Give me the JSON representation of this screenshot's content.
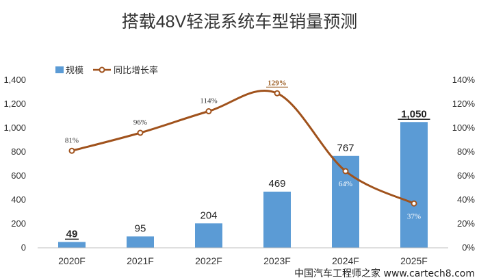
{
  "chart_data": {
    "type": "bar",
    "title": "搭载48V轻混系统车型销量预测",
    "categories": [
      "2020F",
      "2021F",
      "2022F",
      "2023F",
      "2024F",
      "2025F"
    ],
    "series": [
      {
        "name": "规模",
        "type": "bar",
        "axis": "left",
        "values": [
          49,
          95,
          204,
          469,
          767,
          1050
        ],
        "labels": [
          "49",
          "95",
          "204",
          "469",
          "767",
          "1,050"
        ],
        "color": "#5b9bd5"
      },
      {
        "name": "同比增长率",
        "type": "line",
        "axis": "right",
        "values": [
          81,
          96,
          114,
          129,
          64,
          37
        ],
        "labels": [
          "81%",
          "96%",
          "114%",
          "129%",
          "64%",
          "37%"
        ],
        "color": "#a0521c"
      }
    ],
    "y_left": {
      "ylim": [
        0,
        1400
      ],
      "ticks": [
        0,
        200,
        400,
        600,
        800,
        1000,
        1200,
        1400
      ],
      "tick_labels": [
        "0",
        "200",
        "400",
        "600",
        "800",
        "1,000",
        "1,200",
        "1,400"
      ]
    },
    "y_right": {
      "ylim": [
        0,
        140
      ],
      "ticks": [
        0,
        20,
        40,
        60,
        80,
        100,
        120,
        140
      ],
      "tick_labels": [
        "0%",
        "20%",
        "40%",
        "60%",
        "80%",
        "100%",
        "120%",
        "140%"
      ]
    },
    "legend_position": "top-left",
    "grid": false
  },
  "watermark": "中国汽车工程师之家  www.cartech8.com"
}
